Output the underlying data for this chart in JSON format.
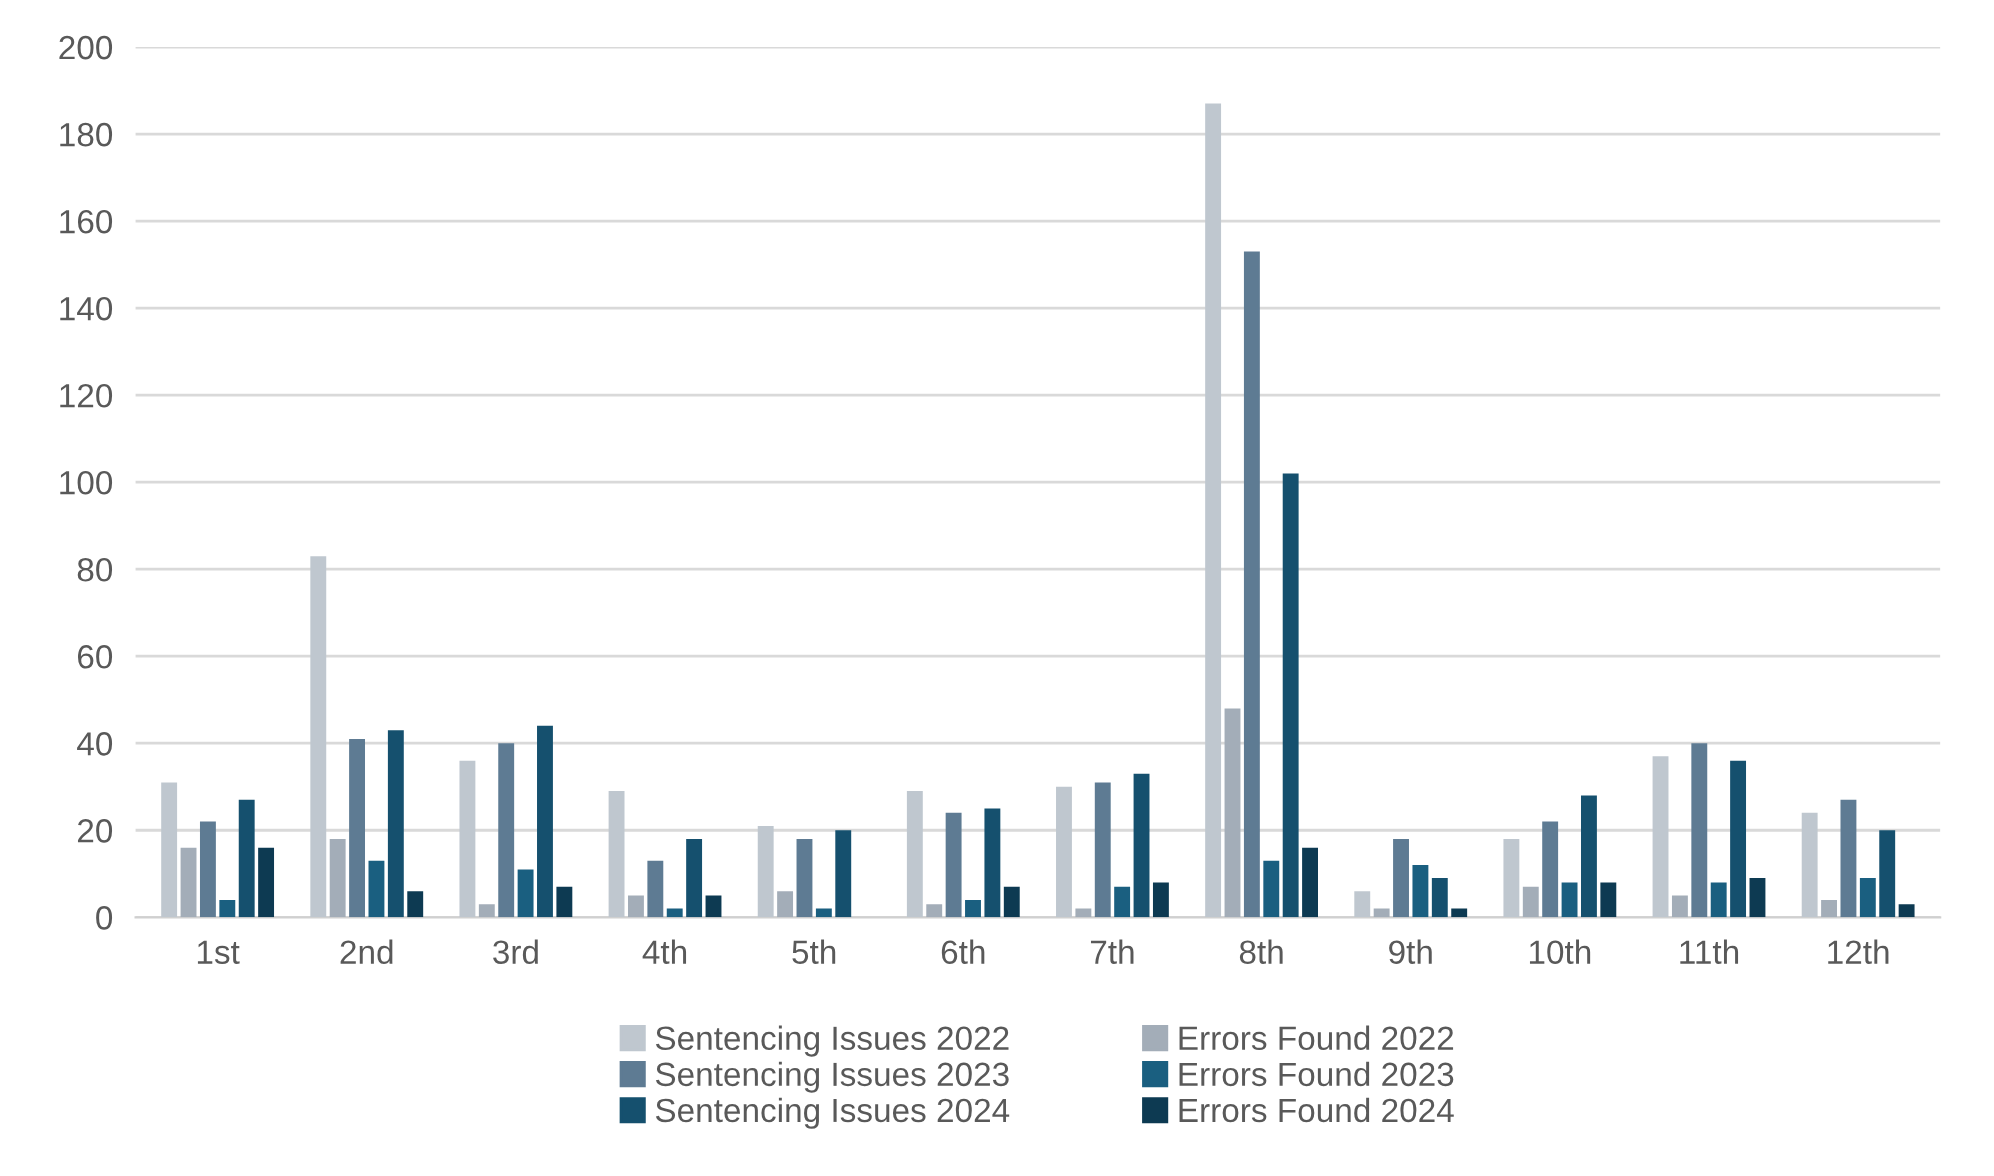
{
  "chart_data": {
    "type": "bar",
    "categories": [
      "1st",
      "2nd",
      "3rd",
      "4th",
      "5th",
      "6th",
      "7th",
      "8th",
      "9th",
      "10th",
      "11th",
      "12th"
    ],
    "series": [
      {
        "name": "Sentencing Issues 2022",
        "color": "#bfc7cf",
        "values": [
          31,
          83,
          36,
          29,
          21,
          29,
          30,
          187,
          6,
          18,
          37,
          24
        ]
      },
      {
        "name": "Errors Found 2022",
        "color": "#a3adb8",
        "values": [
          16,
          18,
          3,
          5,
          6,
          3,
          2,
          48,
          2,
          7,
          5,
          4
        ]
      },
      {
        "name": "Sentencing Issues 2023",
        "color": "#5e7b93",
        "values": [
          22,
          41,
          40,
          13,
          18,
          24,
          31,
          153,
          18,
          22,
          40,
          27
        ]
      },
      {
        "name": "Errors Found 2023",
        "color": "#1a5f80",
        "values": [
          4,
          13,
          11,
          2,
          2,
          4,
          7,
          13,
          12,
          8,
          8,
          9
        ]
      },
      {
        "name": "Sentencing Issues 2024",
        "color": "#15506e",
        "values": [
          27,
          43,
          44,
          18,
          20,
          25,
          33,
          102,
          9,
          28,
          36,
          20
        ]
      },
      {
        "name": "Errors Found 2024",
        "color": "#0d3a52",
        "values": [
          16,
          6,
          7,
          5,
          0,
          7,
          8,
          16,
          2,
          8,
          9,
          3
        ]
      }
    ],
    "ylim": [
      0,
      200
    ],
    "yticks": [
      0,
      20,
      40,
      60,
      80,
      100,
      120,
      140,
      160,
      180,
      200
    ],
    "grid": "y",
    "legend": "bottom"
  }
}
